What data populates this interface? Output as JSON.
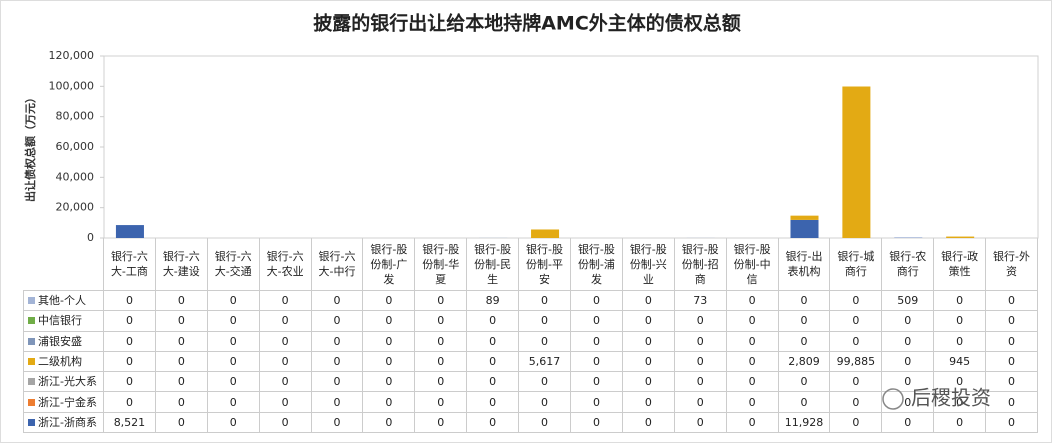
{
  "chart_data": {
    "type": "bar",
    "stacked": true,
    "title": "披露的银行出让给本地持牌AMC外主体的债权总额",
    "y_label": "出让债权总额（万元）",
    "categories": [
      "银行-六大-工商",
      "银行-六大-建设",
      "银行-六大-交通",
      "银行-六大-农业",
      "银行-六大-中行",
      "银行-股份制-广发",
      "银行-股份制-华夏",
      "银行-股份制-民生",
      "银行-股份制-平安",
      "银行-股份制-浦发",
      "银行-股份制-兴业",
      "银行-股份制-招商",
      "银行-股份制-中信",
      "银行-出表机构",
      "银行-城商行",
      "银行-农商行",
      "银行-政策性",
      "银行-外资"
    ],
    "series": [
      {
        "name": "其他-个人",
        "color": "#a3b4d6",
        "values": [
          0,
          0,
          0,
          0,
          0,
          0,
          0,
          89,
          0,
          0,
          0,
          73,
          0,
          0,
          0,
          509,
          0,
          0
        ]
      },
      {
        "name": "中信银行",
        "color": "#70ad47",
        "values": [
          0,
          0,
          0,
          0,
          0,
          0,
          0,
          0,
          0,
          0,
          0,
          0,
          0,
          0,
          0,
          0,
          0,
          0
        ]
      },
      {
        "name": "浦银安盛",
        "color": "#7f95b9",
        "values": [
          0,
          0,
          0,
          0,
          0,
          0,
          0,
          0,
          0,
          0,
          0,
          0,
          0,
          0,
          0,
          0,
          0,
          0
        ]
      },
      {
        "name": "二级机构",
        "color": "#e3aa14",
        "values": [
          0,
          0,
          0,
          0,
          0,
          0,
          0,
          0,
          5617,
          0,
          0,
          0,
          0,
          2809,
          99885,
          0,
          945,
          0
        ],
        "value_labels": [
          "0",
          "0",
          "0",
          "0",
          "0",
          "0",
          "0",
          "0",
          "5,617",
          "0",
          "0",
          "0",
          "0",
          "2,809",
          "99,885",
          "0",
          "945",
          "0"
        ]
      },
      {
        "name": "浙江-光大系",
        "color": "#a5a5a5",
        "values": [
          0,
          0,
          0,
          0,
          0,
          0,
          0,
          0,
          0,
          0,
          0,
          0,
          0,
          0,
          0,
          0,
          0,
          0
        ]
      },
      {
        "name": "浙江-宁金系",
        "color": "#ed7d31",
        "values": [
          0,
          0,
          0,
          0,
          0,
          0,
          0,
          0,
          0,
          0,
          0,
          0,
          0,
          0,
          0,
          0,
          0,
          0
        ]
      },
      {
        "name": "浙江-浙商系",
        "color": "#3c64ae",
        "values": [
          8521,
          0,
          0,
          0,
          0,
          0,
          0,
          0,
          0,
          0,
          0,
          0,
          0,
          11928,
          0,
          0,
          0,
          0
        ],
        "value_labels": [
          "8,521",
          "0",
          "0",
          "0",
          "0",
          "0",
          "0",
          "0",
          "0",
          "0",
          "0",
          "0",
          "0",
          "11,928",
          "0",
          "0",
          "0",
          "0"
        ]
      }
    ],
    "ylim": [
      0,
      120000
    ],
    "yticks": [
      0,
      {
        "value": 20000,
        "label": "20,000"
      },
      {
        "value": 40000,
        "label": "40,000"
      },
      {
        "value": 60000,
        "label": "60,000"
      },
      {
        "value": 80000,
        "label": "80,000"
      },
      {
        "value": 100000,
        "label": "100,000"
      },
      {
        "value": 120000,
        "label": "120,000"
      }
    ],
    "grid": false,
    "watermark": "后稷投资"
  }
}
